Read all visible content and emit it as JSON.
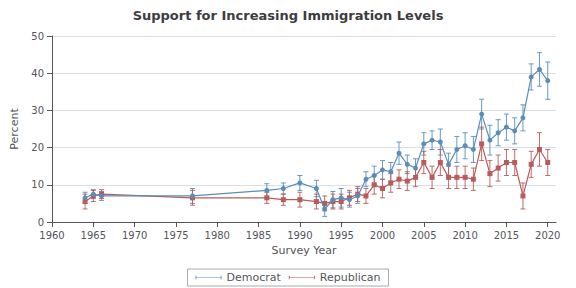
{
  "chart_data": {
    "type": "line",
    "title": "Support for Increasing Immigration Levels",
    "x_label": "Survey Year",
    "y_label": "Percent",
    "xlim": [
      1960,
      2021
    ],
    "xticks": [
      1960,
      1965,
      1970,
      1975,
      1980,
      1985,
      1990,
      1995,
      2000,
      2005,
      2010,
      2015,
      2020
    ],
    "ylim": [
      0,
      50
    ],
    "yticks": [
      0,
      10,
      20,
      30,
      40,
      50
    ],
    "grid": true,
    "legend": "bottom",
    "x": [
      1964,
      1965,
      1966,
      1977,
      1986,
      1988,
      1990,
      1992,
      1993,
      1994,
      1995,
      1996,
      1997,
      1998,
      1999,
      2000,
      2001,
      2002,
      2003,
      2004,
      2005,
      2006,
      2007,
      2008,
      2009,
      2010,
      2011,
      2012,
      2013,
      2014,
      2015,
      2016,
      2017,
      2018,
      2019,
      2020
    ],
    "series": [
      {
        "name": "Democrat",
        "color": "#5b8db8",
        "marker": "circle",
        "line_style": "solid",
        "values": [
          6.5,
          7.5,
          7.0,
          7.0,
          8.5,
          9.0,
          10.5,
          9.0,
          3.5,
          6.0,
          6.5,
          6.0,
          7.0,
          11.5,
          12.5,
          14.0,
          13.5,
          18.5,
          15.5,
          14.5,
          21.0,
          22.0,
          21.5,
          15.5,
          19.5,
          20.5,
          19.5,
          29.0,
          22.0,
          24.0,
          25.5,
          24.5,
          28.0,
          39.0,
          41.0,
          38.0
        ],
        "errors": [
          1.5,
          1.2,
          1.2,
          2.0,
          1.8,
          1.5,
          2.0,
          2.2,
          2.0,
          2.2,
          2.5,
          2.0,
          2.0,
          2.0,
          2.5,
          2.5,
          2.5,
          3.0,
          2.5,
          2.5,
          3.0,
          2.5,
          3.5,
          3.0,
          3.5,
          3.5,
          3.5,
          4.0,
          4.0,
          3.5,
          3.5,
          3.5,
          3.5,
          3.5,
          4.5,
          5.0
        ]
      },
      {
        "name": "Republican",
        "color": "#b85b5b",
        "marker": "square",
        "line_style": "solid",
        "values": [
          5.5,
          7.0,
          7.5,
          6.5,
          6.5,
          6.0,
          6.0,
          5.5,
          5.0,
          5.5,
          5.5,
          6.5,
          7.5,
          7.0,
          10.0,
          9.0,
          10.5,
          11.5,
          11.0,
          12.0,
          16.0,
          12.0,
          16.0,
          12.0,
          12.0,
          12.0,
          11.5,
          21.0,
          13.0,
          14.5,
          16.0,
          16.0,
          7.0,
          15.5,
          19.5,
          16.0
        ],
        "errors": [
          2.0,
          1.5,
          1.2,
          2.0,
          1.5,
          1.5,
          2.0,
          2.0,
          2.0,
          2.0,
          2.0,
          2.0,
          2.0,
          2.0,
          2.5,
          2.5,
          2.5,
          2.5,
          2.5,
          2.5,
          3.0,
          3.0,
          3.5,
          3.0,
          3.0,
          3.0,
          3.0,
          4.5,
          3.5,
          3.5,
          3.5,
          3.5,
          3.5,
          3.5,
          4.5,
          3.5
        ]
      }
    ]
  }
}
